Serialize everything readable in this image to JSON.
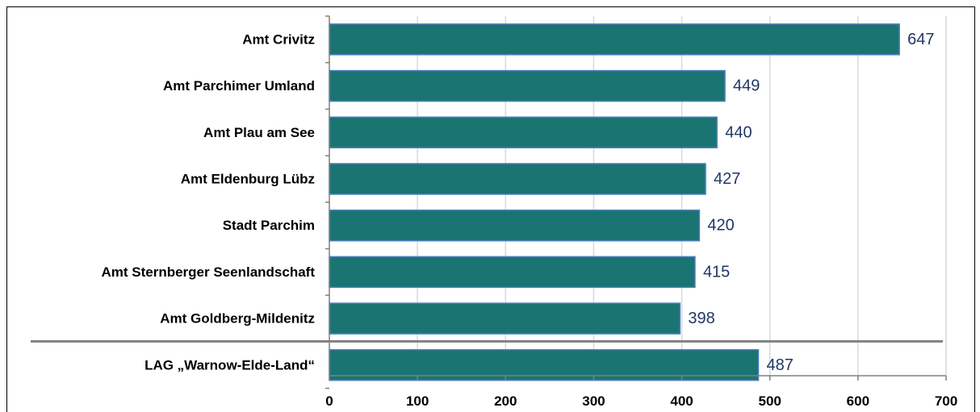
{
  "chart_data": {
    "type": "bar",
    "orientation": "horizontal",
    "categories": [
      "Amt Crivitz",
      "Amt Parchimer Umland",
      "Amt Plau am See",
      "Amt Eldenburg Lübz",
      "Stadt Parchim",
      "Amt Sternberger Seenlandschaft",
      "Amt Goldberg-Mildenitz",
      "LAG „Warnow-Elde-Land“"
    ],
    "values": [
      647,
      449,
      440,
      427,
      420,
      415,
      398,
      487
    ],
    "data_labels": [
      "647",
      "449",
      "440",
      "427",
      "420",
      "415",
      "398",
      "487"
    ],
    "xlim": [
      0,
      700
    ],
    "x_ticks": [
      0,
      100,
      200,
      300,
      400,
      500,
      600,
      700
    ],
    "x_tick_labels": [
      "0",
      "100",
      "200",
      "300",
      "400",
      "500",
      "600",
      "700"
    ],
    "grid": "vertical",
    "separator_before_last": true,
    "colors": {
      "bar_fill": "#197472",
      "bar_border": "#4f81bd",
      "data_label": "#1f3864",
      "gridline": "#d9d9d9",
      "separator": "#808080"
    }
  }
}
